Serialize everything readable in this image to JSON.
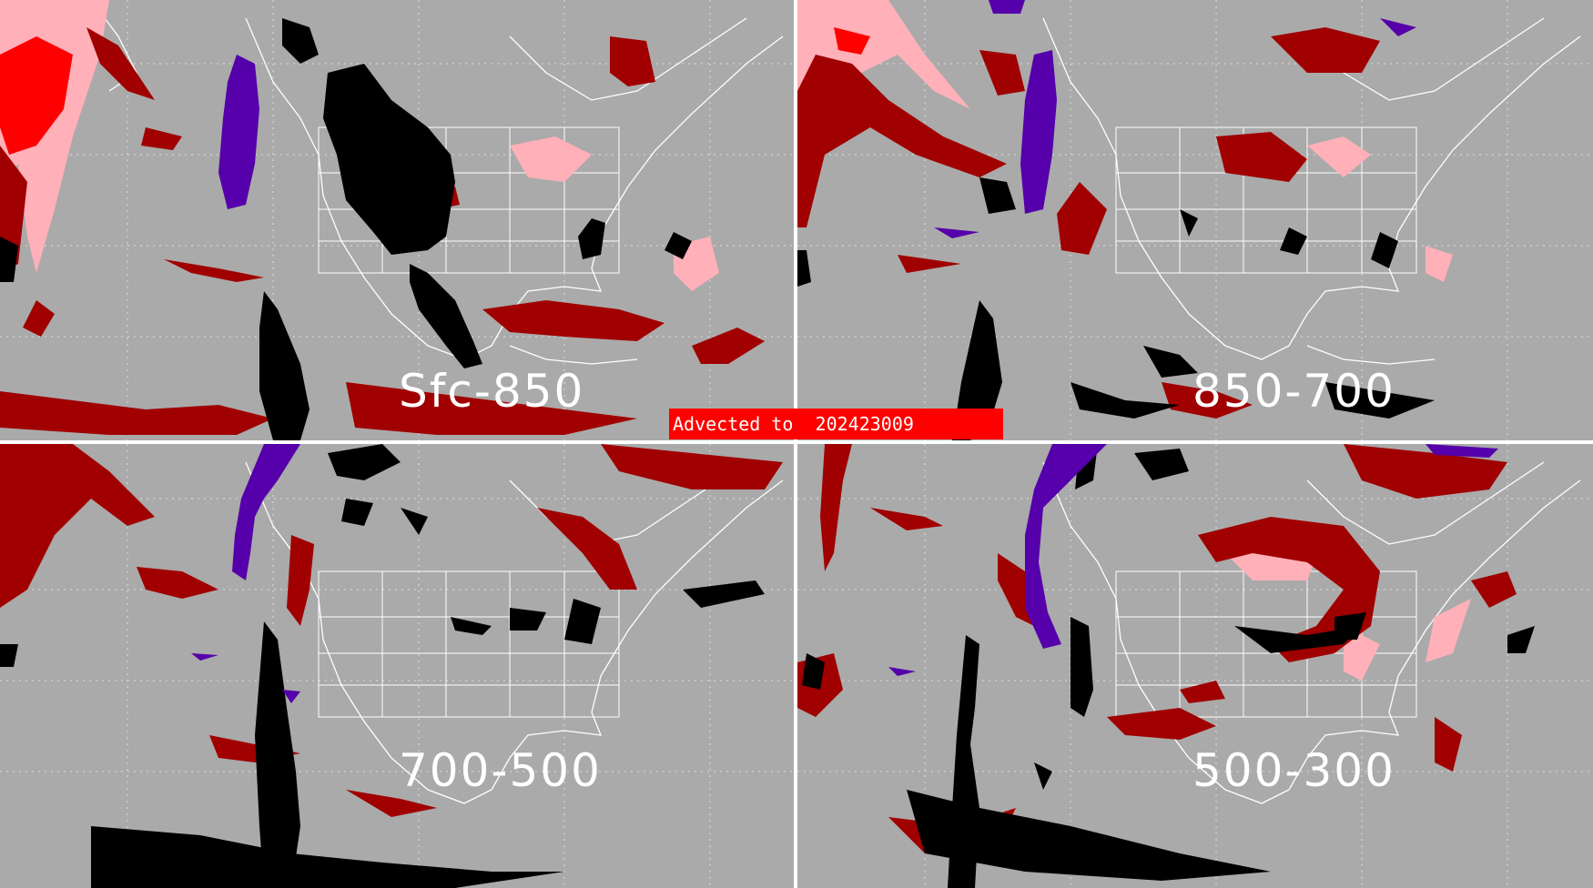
{
  "panels": [
    {
      "id": "sfc-850",
      "label": "Sfc-850"
    },
    {
      "id": "850-700",
      "label": "850-700"
    },
    {
      "id": "700-500",
      "label": "700-500"
    },
    {
      "id": "500-300",
      "label": "500-300"
    }
  ],
  "banner": {
    "text": "Advected to  202423009"
  },
  "colors": {
    "background": "#aaaaaa",
    "map_lines": "#ffffff",
    "dark_red": "#a00000",
    "bright_red": "#ff0000",
    "pink": "#ffb0b8",
    "purple": "#5500aa",
    "black": "#000000",
    "banner": "#ff0000"
  }
}
